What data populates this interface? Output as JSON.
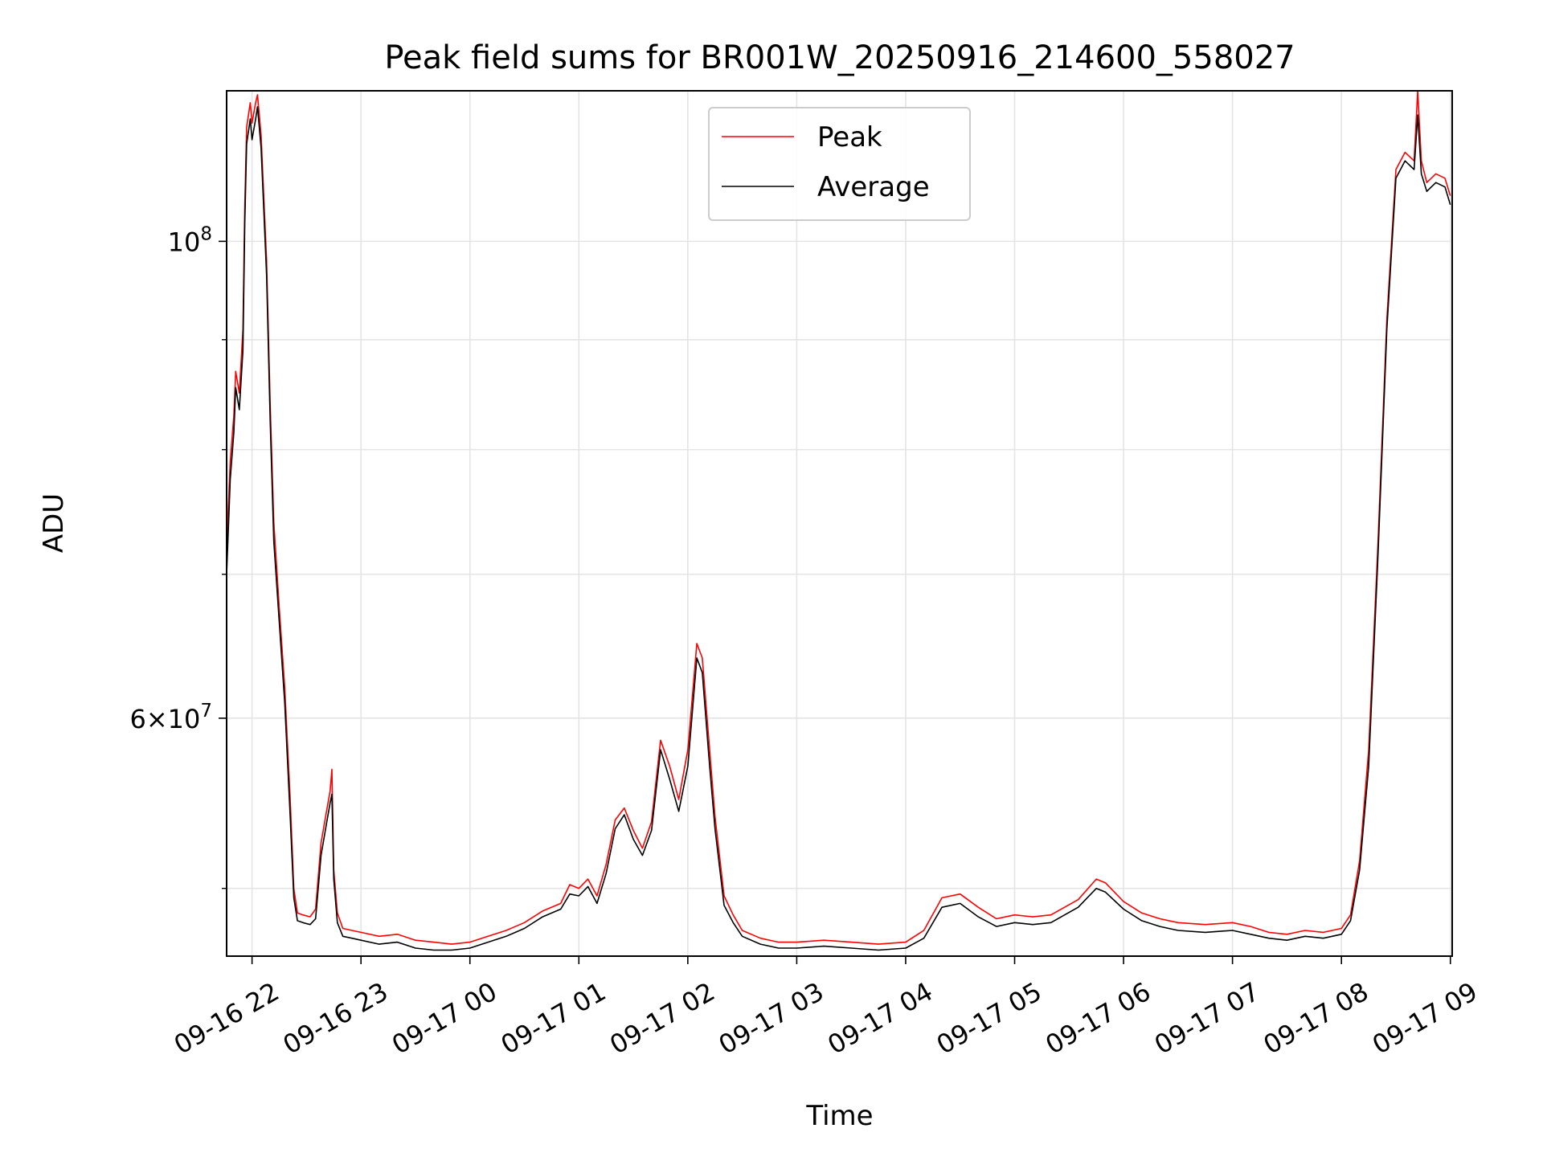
{
  "chart_data": {
    "type": "line",
    "title": "Peak field sums for BR001W_20250916_214600_558027",
    "xlabel": "Time",
    "ylabel": "ADU",
    "x_scale": "time",
    "y_scale": "log",
    "xlim": [
      "2025-09-16 21:46",
      "2025-09-17 09:01"
    ],
    "ylim": [
      46500000,
      117500000
    ],
    "grid": true,
    "legend_placement": "upper center",
    "x_ticks": [
      {
        "t": "2025-09-16 22:00",
        "label": "09-16 22"
      },
      {
        "t": "2025-09-16 23:00",
        "label": "09-16 23"
      },
      {
        "t": "2025-09-17 00:00",
        "label": "09-17 00"
      },
      {
        "t": "2025-09-17 01:00",
        "label": "09-17 01"
      },
      {
        "t": "2025-09-17 02:00",
        "label": "09-17 02"
      },
      {
        "t": "2025-09-17 03:00",
        "label": "09-17 03"
      },
      {
        "t": "2025-09-17 04:00",
        "label": "09-17 04"
      },
      {
        "t": "2025-09-17 05:00",
        "label": "09-17 05"
      },
      {
        "t": "2025-09-17 06:00",
        "label": "09-17 06"
      },
      {
        "t": "2025-09-17 07:00",
        "label": "09-17 07"
      },
      {
        "t": "2025-09-17 08:00",
        "label": "09-17 08"
      },
      {
        "t": "2025-09-17 09:00",
        "label": "09-17 09"
      }
    ],
    "y_major_ticks": [
      {
        "value": 60000000,
        "mantissa": "6",
        "exp": "7"
      },
      {
        "value": 100000000,
        "mantissa": "",
        "exp": "8"
      }
    ],
    "y_minor_ticks": [
      50000000,
      70000000,
      80000000,
      90000000
    ],
    "series": [
      {
        "name": "Peak",
        "color": "#ff0000",
        "points": [
          [
            "2025-09-16 21:46",
            72000000
          ],
          [
            "2025-09-16 21:48",
            79000000
          ],
          [
            "2025-09-16 21:50",
            83000000
          ],
          [
            "2025-09-16 21:51",
            87000000
          ],
          [
            "2025-09-16 21:53",
            85000000
          ],
          [
            "2025-09-16 21:55",
            91000000
          ],
          [
            "2025-09-16 21:56",
            104000000
          ],
          [
            "2025-09-16 21:57",
            113000000
          ],
          [
            "2025-09-16 21:59",
            116000000
          ],
          [
            "2025-09-16 22:00",
            113500000
          ],
          [
            "2025-09-16 22:02",
            116000000
          ],
          [
            "2025-09-16 22:03",
            117000000
          ],
          [
            "2025-09-16 22:05",
            112000000
          ],
          [
            "2025-09-16 22:08",
            98000000
          ],
          [
            "2025-09-16 22:10",
            84000000
          ],
          [
            "2025-09-16 22:12",
            74000000
          ],
          [
            "2025-09-16 22:15",
            67500000
          ],
          [
            "2025-09-16 22:18",
            62000000
          ],
          [
            "2025-09-16 22:21",
            55000000
          ],
          [
            "2025-09-16 22:23",
            50000000
          ],
          [
            "2025-09-16 22:25",
            48700000
          ],
          [
            "2025-09-16 22:28",
            48600000
          ],
          [
            "2025-09-16 22:32",
            48500000
          ],
          [
            "2025-09-16 22:35",
            48900000
          ],
          [
            "2025-09-16 22:38",
            52500000
          ],
          [
            "2025-09-16 22:41",
            54300000
          ],
          [
            "2025-09-16 22:43",
            55500000
          ],
          [
            "2025-09-16 22:44",
            56800000
          ],
          [
            "2025-09-16 22:45",
            51000000
          ],
          [
            "2025-09-16 22:47",
            48700000
          ],
          [
            "2025-09-16 22:50",
            47900000
          ],
          [
            "2025-09-16 22:55",
            47800000
          ],
          [
            "2025-09-16 23:00",
            47700000
          ],
          [
            "2025-09-16 23:10",
            47500000
          ],
          [
            "2025-09-16 23:20",
            47600000
          ],
          [
            "2025-09-16 23:30",
            47300000
          ],
          [
            "2025-09-16 23:40",
            47200000
          ],
          [
            "2025-09-16 23:50",
            47100000
          ],
          [
            "2025-09-17 00:00",
            47200000
          ],
          [
            "2025-09-17 00:10",
            47500000
          ],
          [
            "2025-09-17 00:20",
            47800000
          ],
          [
            "2025-09-17 00:30",
            48200000
          ],
          [
            "2025-09-17 00:40",
            48800000
          ],
          [
            "2025-09-17 00:50",
            49200000
          ],
          [
            "2025-09-17 00:55",
            50200000
          ],
          [
            "2025-09-17 01:00",
            50000000
          ],
          [
            "2025-09-17 01:05",
            50500000
          ],
          [
            "2025-09-17 01:10",
            49600000
          ],
          [
            "2025-09-17 01:15",
            51300000
          ],
          [
            "2025-09-17 01:20",
            53800000
          ],
          [
            "2025-09-17 01:25",
            54500000
          ],
          [
            "2025-09-17 01:30",
            53200000
          ],
          [
            "2025-09-17 01:35",
            52200000
          ],
          [
            "2025-09-17 01:40",
            53700000
          ],
          [
            "2025-09-17 01:45",
            58600000
          ],
          [
            "2025-09-17 01:50",
            57000000
          ],
          [
            "2025-09-17 01:55",
            55000000
          ],
          [
            "2025-09-17 02:00",
            58000000
          ],
          [
            "2025-09-17 02:05",
            65000000
          ],
          [
            "2025-09-17 02:08",
            64000000
          ],
          [
            "2025-09-17 02:12",
            58000000
          ],
          [
            "2025-09-17 02:15",
            54000000
          ],
          [
            "2025-09-17 02:20",
            49600000
          ],
          [
            "2025-09-17 02:25",
            48600000
          ],
          [
            "2025-09-17 02:30",
            47800000
          ],
          [
            "2025-09-17 02:40",
            47400000
          ],
          [
            "2025-09-17 02:50",
            47200000
          ],
          [
            "2025-09-17 03:00",
            47200000
          ],
          [
            "2025-09-17 03:15",
            47300000
          ],
          [
            "2025-09-17 03:30",
            47200000
          ],
          [
            "2025-09-17 03:45",
            47100000
          ],
          [
            "2025-09-17 04:00",
            47200000
          ],
          [
            "2025-09-17 04:10",
            47800000
          ],
          [
            "2025-09-17 04:20",
            49500000
          ],
          [
            "2025-09-17 04:30",
            49700000
          ],
          [
            "2025-09-17 04:40",
            49000000
          ],
          [
            "2025-09-17 04:50",
            48400000
          ],
          [
            "2025-09-17 05:00",
            48600000
          ],
          [
            "2025-09-17 05:10",
            48500000
          ],
          [
            "2025-09-17 05:20",
            48600000
          ],
          [
            "2025-09-17 05:35",
            49400000
          ],
          [
            "2025-09-17 05:45",
            50500000
          ],
          [
            "2025-09-17 05:50",
            50300000
          ],
          [
            "2025-09-17 06:00",
            49300000
          ],
          [
            "2025-09-17 06:10",
            48700000
          ],
          [
            "2025-09-17 06:20",
            48400000
          ],
          [
            "2025-09-17 06:30",
            48200000
          ],
          [
            "2025-09-17 06:45",
            48100000
          ],
          [
            "2025-09-17 07:00",
            48200000
          ],
          [
            "2025-09-17 07:10",
            48000000
          ],
          [
            "2025-09-17 07:20",
            47700000
          ],
          [
            "2025-09-17 07:30",
            47600000
          ],
          [
            "2025-09-17 07:40",
            47800000
          ],
          [
            "2025-09-17 07:50",
            47700000
          ],
          [
            "2025-09-17 08:00",
            47900000
          ],
          [
            "2025-09-17 08:05",
            48600000
          ],
          [
            "2025-09-17 08:10",
            51500000
          ],
          [
            "2025-09-17 08:15",
            58000000
          ],
          [
            "2025-09-17 08:20",
            72000000
          ],
          [
            "2025-09-17 08:25",
            92000000
          ],
          [
            "2025-09-17 08:30",
            108000000
          ],
          [
            "2025-09-17 08:35",
            110000000
          ],
          [
            "2025-09-17 08:40",
            109000000
          ],
          [
            "2025-09-17 08:42",
            117500000
          ],
          [
            "2025-09-17 08:44",
            109000000
          ],
          [
            "2025-09-17 08:47",
            106500000
          ],
          [
            "2025-09-17 08:52",
            107500000
          ],
          [
            "2025-09-17 08:57",
            107000000
          ],
          [
            "2025-09-17 09:00",
            105000000
          ]
        ]
      },
      {
        "name": "Average",
        "color": "#000000",
        "points": [
          [
            "2025-09-16 21:46",
            70000000
          ],
          [
            "2025-09-16 21:48",
            77500000
          ],
          [
            "2025-09-16 21:50",
            81500000
          ],
          [
            "2025-09-16 21:51",
            85500000
          ],
          [
            "2025-09-16 21:53",
            83500000
          ],
          [
            "2025-09-16 21:55",
            89000000
          ],
          [
            "2025-09-16 21:56",
            102000000
          ],
          [
            "2025-09-16 21:57",
            111000000
          ],
          [
            "2025-09-16 21:59",
            114000000
          ],
          [
            "2025-09-16 22:00",
            111500000
          ],
          [
            "2025-09-16 22:02",
            114000000
          ],
          [
            "2025-09-16 22:03",
            115500000
          ],
          [
            "2025-09-16 22:05",
            110500000
          ],
          [
            "2025-09-16 22:08",
            96500000
          ],
          [
            "2025-09-16 22:10",
            82500000
          ],
          [
            "2025-09-16 22:12",
            72500000
          ],
          [
            "2025-09-16 22:15",
            66500000
          ],
          [
            "2025-09-16 22:18",
            61000000
          ],
          [
            "2025-09-16 22:21",
            54000000
          ],
          [
            "2025-09-16 22:23",
            49500000
          ],
          [
            "2025-09-16 22:25",
            48300000
          ],
          [
            "2025-09-16 22:28",
            48200000
          ],
          [
            "2025-09-16 22:32",
            48100000
          ],
          [
            "2025-09-16 22:35",
            48400000
          ],
          [
            "2025-09-16 22:38",
            51800000
          ],
          [
            "2025-09-16 22:41",
            53600000
          ],
          [
            "2025-09-16 22:43",
            54800000
          ],
          [
            "2025-09-16 22:44",
            55300000
          ],
          [
            "2025-09-16 22:45",
            50500000
          ],
          [
            "2025-09-16 22:47",
            48200000
          ],
          [
            "2025-09-16 22:50",
            47500000
          ],
          [
            "2025-09-16 22:55",
            47400000
          ],
          [
            "2025-09-16 23:00",
            47300000
          ],
          [
            "2025-09-16 23:10",
            47100000
          ],
          [
            "2025-09-16 23:20",
            47200000
          ],
          [
            "2025-09-16 23:30",
            46900000
          ],
          [
            "2025-09-16 23:40",
            46800000
          ],
          [
            "2025-09-16 23:50",
            46800000
          ],
          [
            "2025-09-17 00:00",
            46900000
          ],
          [
            "2025-09-17 00:10",
            47200000
          ],
          [
            "2025-09-17 00:20",
            47500000
          ],
          [
            "2025-09-17 00:30",
            47900000
          ],
          [
            "2025-09-17 00:40",
            48500000
          ],
          [
            "2025-09-17 00:50",
            48900000
          ],
          [
            "2025-09-17 00:55",
            49700000
          ],
          [
            "2025-09-17 01:00",
            49600000
          ],
          [
            "2025-09-17 01:05",
            50100000
          ],
          [
            "2025-09-17 01:10",
            49200000
          ],
          [
            "2025-09-17 01:15",
            50800000
          ],
          [
            "2025-09-17 01:20",
            53300000
          ],
          [
            "2025-09-17 01:25",
            54100000
          ],
          [
            "2025-09-17 01:30",
            52700000
          ],
          [
            "2025-09-17 01:35",
            51800000
          ],
          [
            "2025-09-17 01:40",
            53200000
          ],
          [
            "2025-09-17 01:45",
            58000000
          ],
          [
            "2025-09-17 01:50",
            56200000
          ],
          [
            "2025-09-17 01:55",
            54300000
          ],
          [
            "2025-09-17 02:00",
            57000000
          ],
          [
            "2025-09-17 02:05",
            64000000
          ],
          [
            "2025-09-17 02:08",
            63000000
          ],
          [
            "2025-09-17 02:12",
            57000000
          ],
          [
            "2025-09-17 02:15",
            53300000
          ],
          [
            "2025-09-17 02:20",
            49100000
          ],
          [
            "2025-09-17 02:25",
            48200000
          ],
          [
            "2025-09-17 02:30",
            47500000
          ],
          [
            "2025-09-17 02:40",
            47100000
          ],
          [
            "2025-09-17 02:50",
            46900000
          ],
          [
            "2025-09-17 03:00",
            46900000
          ],
          [
            "2025-09-17 03:15",
            47000000
          ],
          [
            "2025-09-17 03:30",
            46900000
          ],
          [
            "2025-09-17 03:45",
            46800000
          ],
          [
            "2025-09-17 04:00",
            46900000
          ],
          [
            "2025-09-17 04:10",
            47400000
          ],
          [
            "2025-09-17 04:20",
            49000000
          ],
          [
            "2025-09-17 04:30",
            49200000
          ],
          [
            "2025-09-17 04:40",
            48500000
          ],
          [
            "2025-09-17 04:50",
            48000000
          ],
          [
            "2025-09-17 05:00",
            48200000
          ],
          [
            "2025-09-17 05:10",
            48100000
          ],
          [
            "2025-09-17 05:20",
            48200000
          ],
          [
            "2025-09-17 05:35",
            49000000
          ],
          [
            "2025-09-17 05:45",
            50000000
          ],
          [
            "2025-09-17 05:50",
            49800000
          ],
          [
            "2025-09-17 06:00",
            48900000
          ],
          [
            "2025-09-17 06:10",
            48300000
          ],
          [
            "2025-09-17 06:20",
            48000000
          ],
          [
            "2025-09-17 06:30",
            47800000
          ],
          [
            "2025-09-17 06:45",
            47700000
          ],
          [
            "2025-09-17 07:00",
            47800000
          ],
          [
            "2025-09-17 07:10",
            47600000
          ],
          [
            "2025-09-17 07:20",
            47400000
          ],
          [
            "2025-09-17 07:30",
            47300000
          ],
          [
            "2025-09-17 07:40",
            47500000
          ],
          [
            "2025-09-17 07:50",
            47400000
          ],
          [
            "2025-09-17 08:00",
            47600000
          ],
          [
            "2025-09-17 08:05",
            48300000
          ],
          [
            "2025-09-17 08:10",
            51000000
          ],
          [
            "2025-09-17 08:15",
            57000000
          ],
          [
            "2025-09-17 08:20",
            71000000
          ],
          [
            "2025-09-17 08:25",
            91000000
          ],
          [
            "2025-09-17 08:30",
            107000000
          ],
          [
            "2025-09-17 08:35",
            109000000
          ],
          [
            "2025-09-17 08:40",
            108000000
          ],
          [
            "2025-09-17 08:42",
            114500000
          ],
          [
            "2025-09-17 08:44",
            107500000
          ],
          [
            "2025-09-17 08:47",
            105500000
          ],
          [
            "2025-09-17 08:52",
            106500000
          ],
          [
            "2025-09-17 08:57",
            106000000
          ],
          [
            "2025-09-17 09:00",
            104000000
          ]
        ]
      }
    ]
  }
}
